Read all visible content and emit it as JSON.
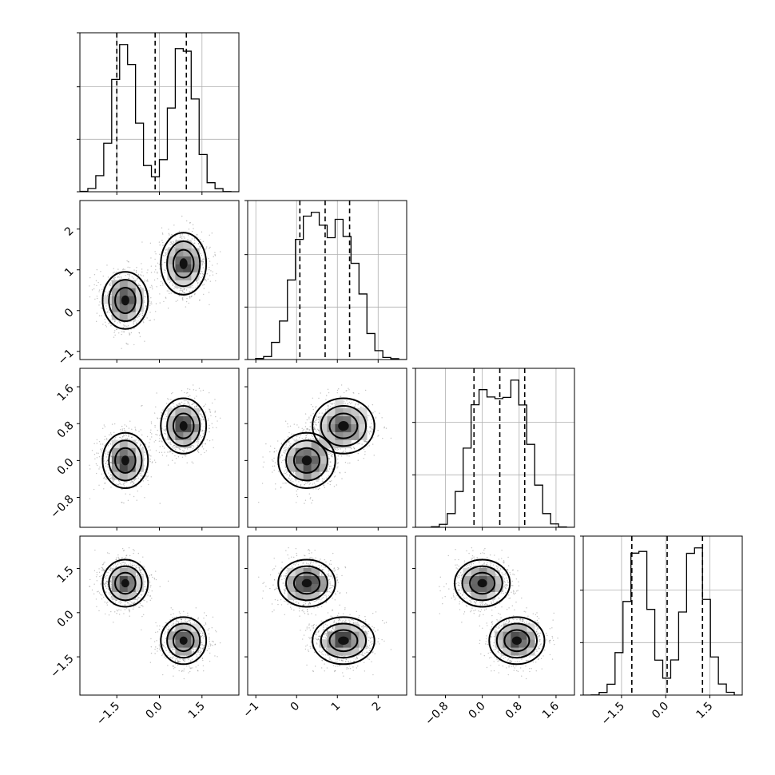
{
  "chart_data": {
    "type": "corner",
    "grid": true,
    "quantiles": [
      0.16,
      0.5,
      0.84
    ],
    "parameters": [
      {
        "range": [
          -2.8,
          2.8
        ],
        "ticks": [
          -1.5,
          0.0,
          1.5
        ],
        "tick_labels": [
          "−1.5",
          "0.0",
          "1.5"
        ],
        "modes": [
          {
            "mu": -1.2,
            "sigma": 0.4,
            "w": 0.5
          },
          {
            "mu": 0.85,
            "sigma": 0.4,
            "w": 0.5
          }
        ],
        "quantile_values": [
          -1.5,
          -0.15,
          0.95
        ]
      },
      {
        "range": [
          -1.2,
          2.7
        ],
        "ticks": [
          -1,
          0,
          1,
          2
        ],
        "tick_labels": [
          "−1",
          "0",
          "1",
          "2"
        ],
        "modes": [
          {
            "mu": 0.25,
            "sigma": 0.35,
            "w": 0.5
          },
          {
            "mu": 1.15,
            "sigma": 0.38,
            "w": 0.5
          }
        ],
        "quantile_values": [
          0.08,
          0.7,
          1.3
        ]
      },
      {
        "range": [
          -1.45,
          2.0
        ],
        "ticks": [
          -0.8,
          0.0,
          0.8,
          1.6
        ],
        "tick_labels": [
          "−0.8",
          "0.0",
          "0.8",
          "1.6"
        ],
        "modes": [
          {
            "mu": 0.0,
            "sigma": 0.3,
            "w": 0.5
          },
          {
            "mu": 0.75,
            "sigma": 0.3,
            "w": 0.5
          }
        ],
        "quantile_values": [
          -0.18,
          0.38,
          0.92
        ]
      },
      {
        "range": [
          -2.8,
          2.6
        ],
        "ticks": [
          -1.5,
          0.0,
          1.5
        ],
        "tick_labels": [
          "−1.5",
          "0.0",
          "1.5"
        ],
        "modes": [
          {
            "mu": 1.0,
            "sigma": 0.4,
            "w": 0.5
          },
          {
            "mu": -0.95,
            "sigma": 0.4,
            "w": 0.5
          }
        ],
        "quantile_values": [
          -1.15,
          0.05,
          1.25
        ]
      }
    ],
    "x_tick_labels_row_1": [
      "−1.5",
      "0.0",
      "1.5"
    ]
  }
}
